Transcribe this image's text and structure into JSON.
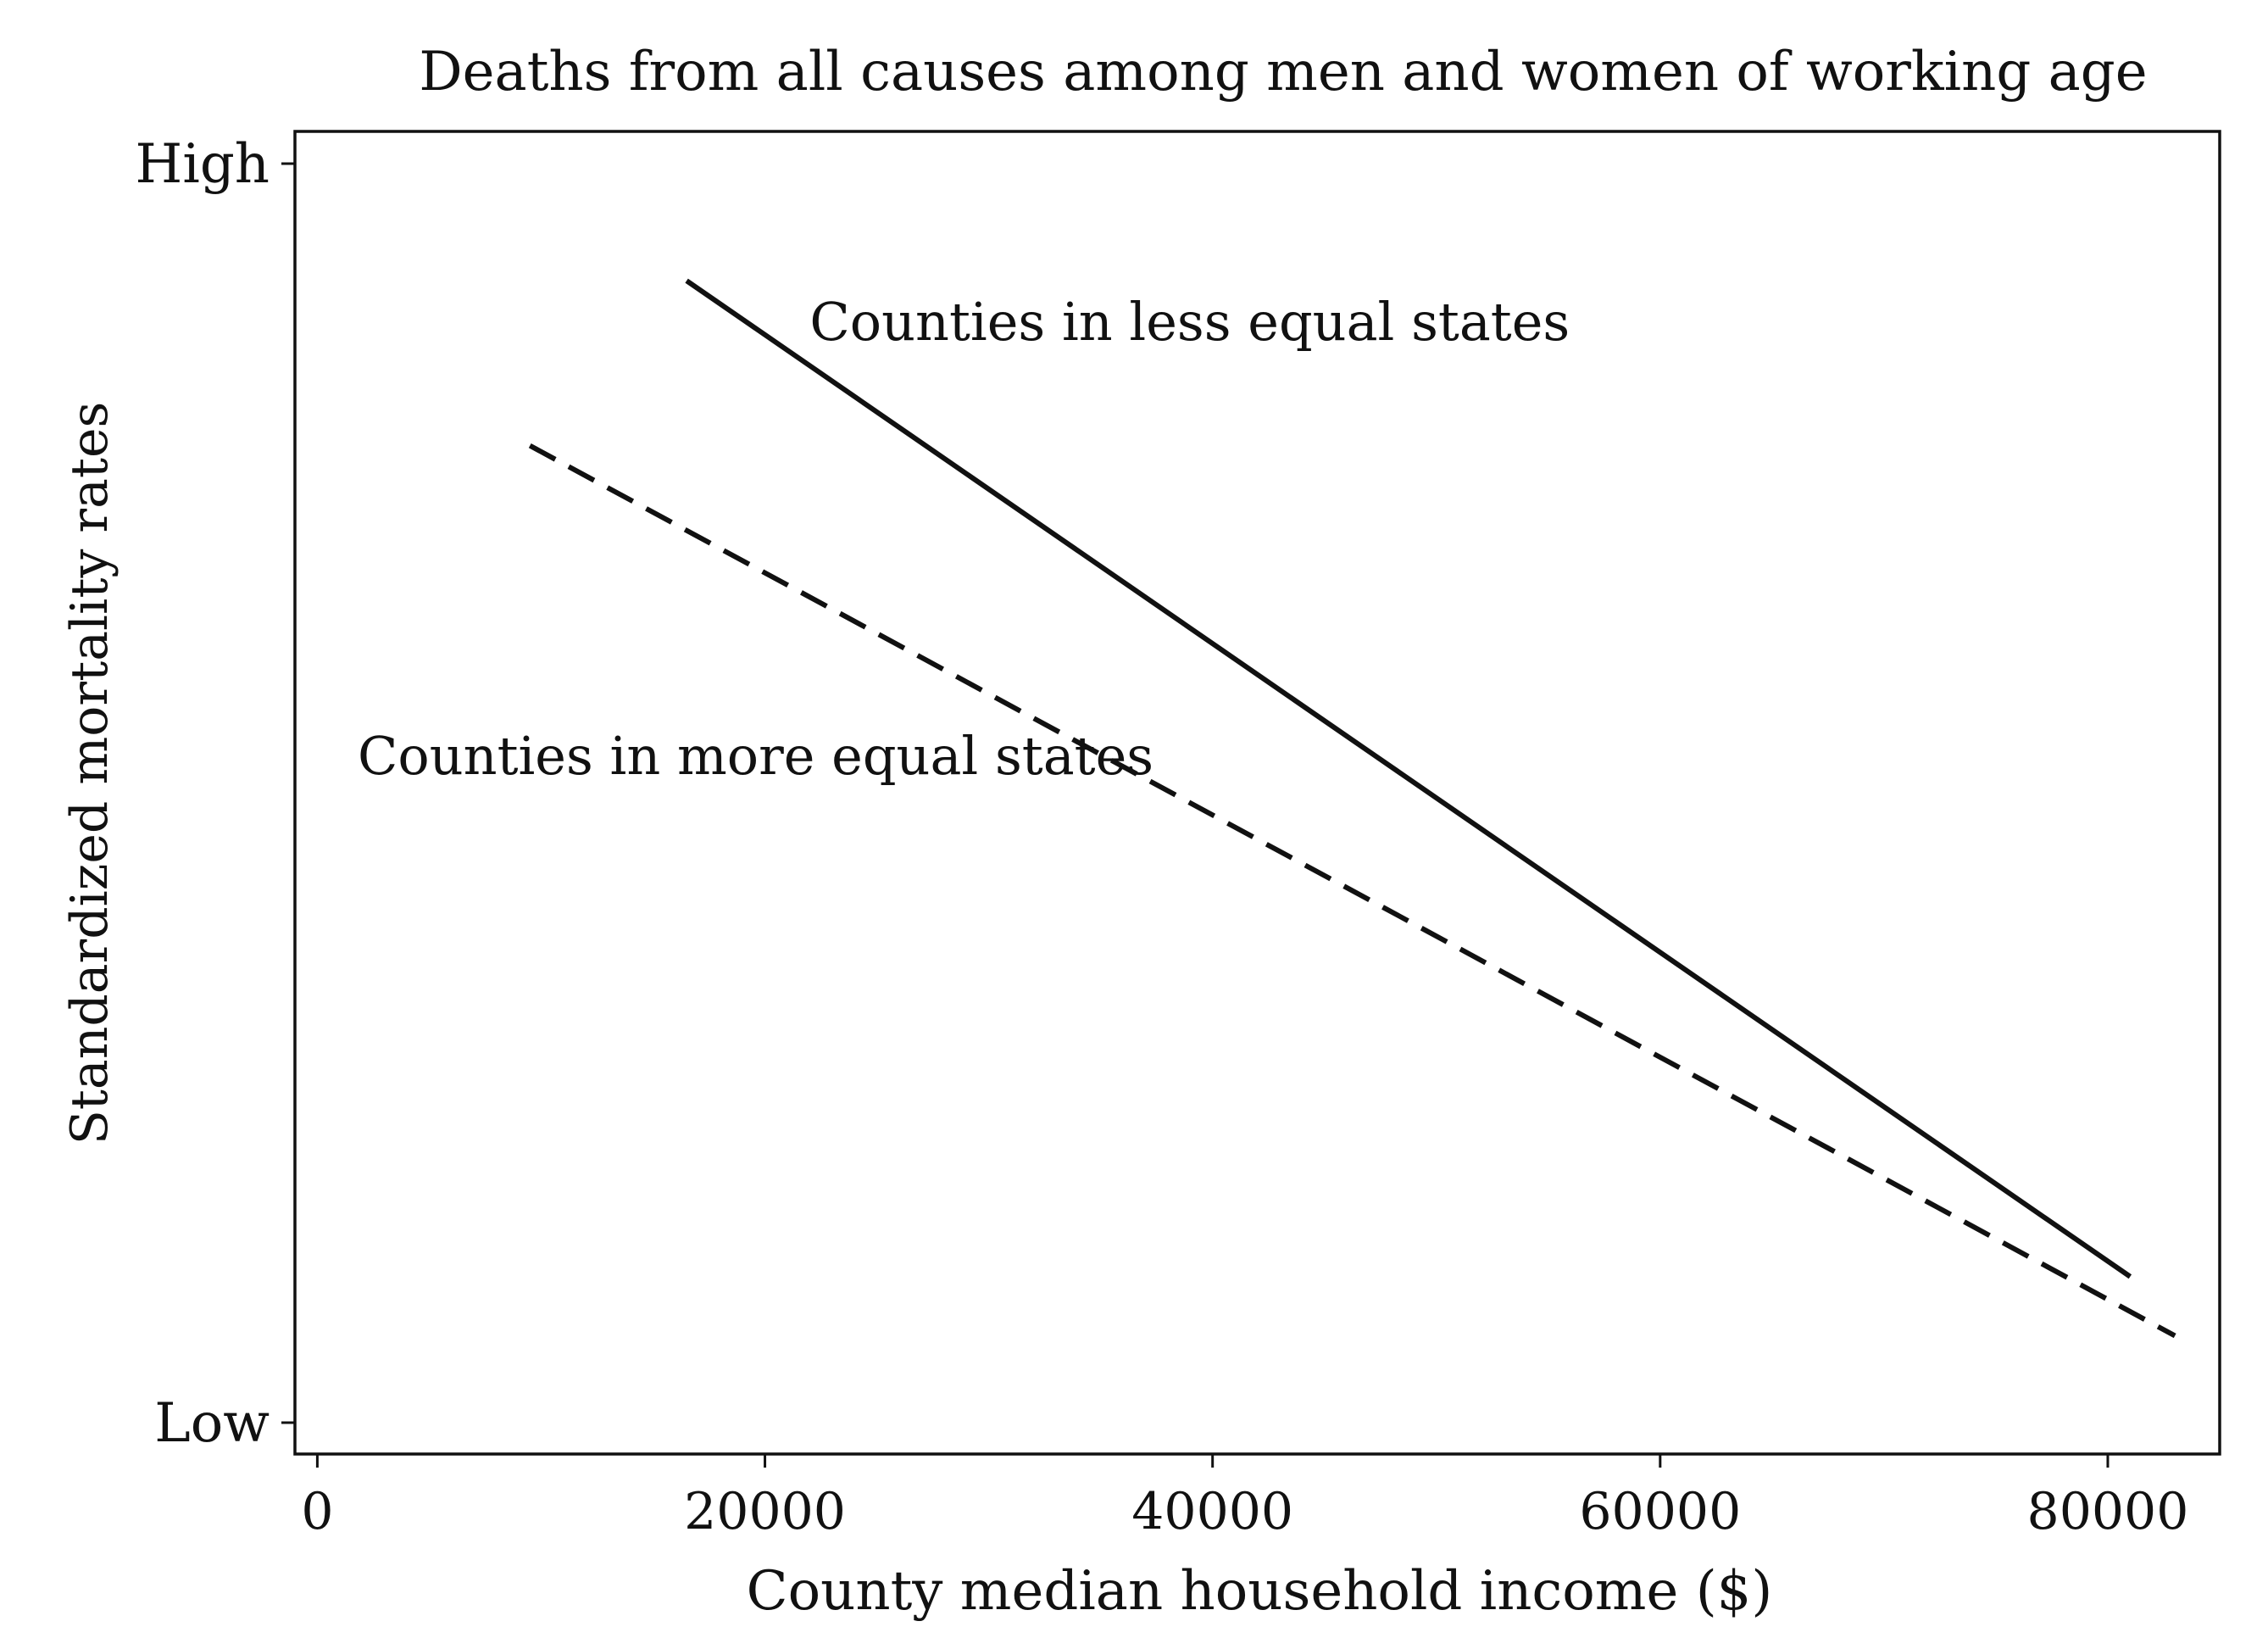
{
  "chart_data": {
    "type": "line",
    "title": "Deaths from all causes among men and women of working age",
    "xlabel": "County median household income ($)",
    "ylabel": "Standardized mortality rates",
    "xlim": [
      -1000,
      85000
    ],
    "ylim": [
      0,
      1
    ],
    "x_ticks": [
      0,
      20000,
      40000,
      60000,
      80000
    ],
    "x_tick_labels": [
      "0",
      "20000",
      "40000",
      "60000",
      "80000"
    ],
    "y_ticks": [
      0,
      1
    ],
    "y_tick_labels": [
      "Low",
      "High"
    ],
    "grid": false,
    "series": [
      {
        "name": "Counties in less equal states",
        "style": "solid",
        "x": [
          16500,
          81000
        ],
        "y": [
          0.907,
          0.116
        ]
      },
      {
        "name": "Counties in more equal states",
        "style": "dashed",
        "x": [
          9500,
          83000
        ],
        "y": [
          0.776,
          0.069
        ]
      }
    ],
    "annotations": [
      {
        "text": "Counties in less equal states",
        "x": 22000,
        "y": 0.86
      },
      {
        "text": "Counties in more equal states",
        "x": 1800,
        "y": 0.515
      }
    ],
    "colors": {
      "line": "#111111",
      "axis": "#111111",
      "background": "#ffffff"
    }
  }
}
